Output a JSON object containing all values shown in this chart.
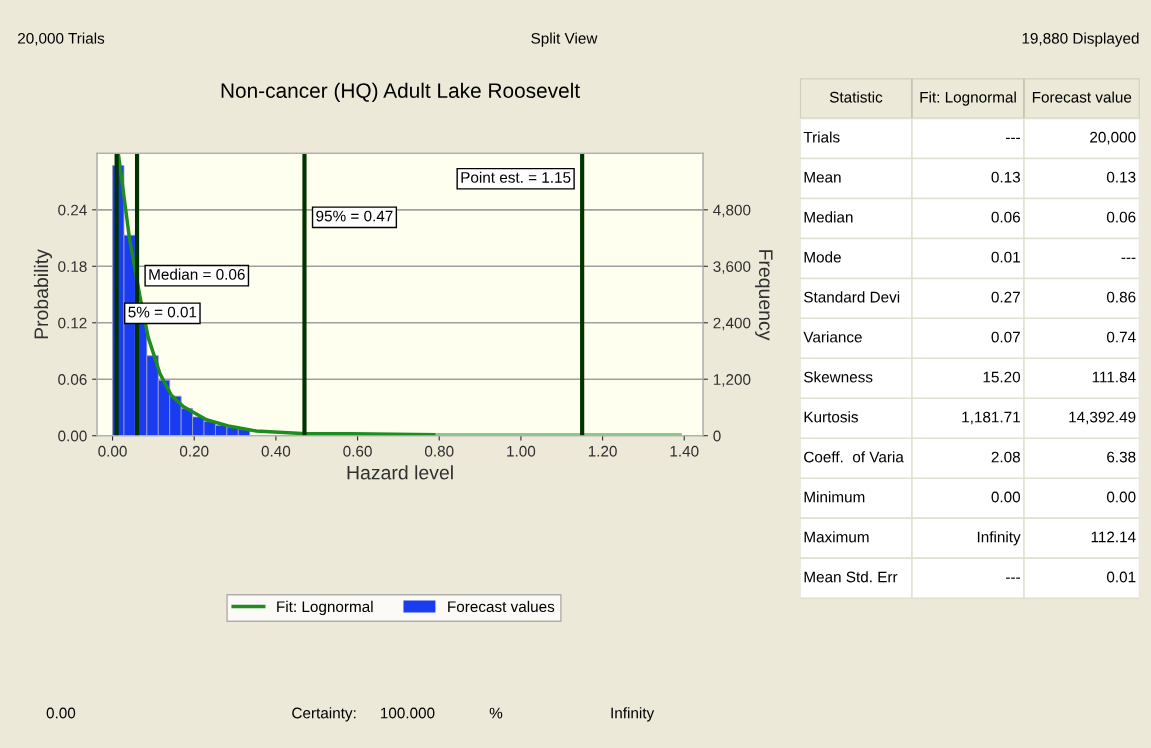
{
  "chart_data": [
    {
      "type": "histogram",
      "title": "Non-cancer (HQ) Adult Lake Roosevelt",
      "xlabel": "Hazard level",
      "ylabel": "Probability",
      "y2label": "Frequency",
      "xlim": [
        -0.038,
        1.446
      ],
      "xticks": [
        {
          "value": 0,
          "label": "0.00"
        },
        {
          "value": 0.2,
          "label": "0.20"
        },
        {
          "value": 0.4,
          "label": "0.40"
        },
        {
          "value": 0.6,
          "label": "0.60"
        },
        {
          "value": 0.8,
          "label": "0.80"
        },
        {
          "value": 1.0,
          "label": "1.00"
        },
        {
          "value": 1.2,
          "label": "1.20"
        },
        {
          "value": 1.4,
          "label": "1.40"
        }
      ],
      "ylim": [
        0,
        0.3
      ],
      "yticks": [
        {
          "value": 0,
          "label": "0.00"
        },
        {
          "value": 0.06,
          "label": "0.06"
        },
        {
          "value": 0.12,
          "label": "0.12"
        },
        {
          "value": 0.18,
          "label": "0.18"
        },
        {
          "value": 0.24,
          "label": "0.24"
        }
      ],
      "y2lim": [
        0,
        6000
      ],
      "y2ticks": [
        0,
        {
          "value": 1200,
          "label": "1,200"
        },
        {
          "value": 2400,
          "label": "2,400"
        },
        {
          "value": 3600,
          "label": "3,600"
        },
        {
          "value": 4800,
          "label": "4,800"
        }
      ],
      "grid": "y",
      "legend": "bottom",
      "series": [
        {
          "name": "Forecast values",
          "type": "histogram",
          "color": "#1a3cf0",
          "bins": [
            0,
            0.028,
            0.056,
            0.084,
            0.112,
            0.14,
            0.168,
            0.196,
            0.224,
            0.252,
            0.28,
            0.308,
            0.336,
            0.364,
            0.392,
            0.42,
            0.448,
            0.476,
            0.504,
            0.532,
            0.56,
            0.588,
            0.616,
            0.644,
            0.672,
            0.7,
            0.728,
            0.756,
            0.784,
            0.812
          ],
          "values": [
            0.287,
            0.213,
            0.12,
            0.085,
            0.059,
            0.042,
            0.029,
            0.02,
            0.015,
            0.011,
            0.009,
            0.007,
            null,
            null,
            null,
            null,
            null,
            null,
            null,
            null,
            0.001,
            0.001,
            0.001,
            0.001,
            0.001,
            0.001,
            0.001,
            0.001,
            0.001
          ]
        },
        {
          "name": "Fit: Lognormal",
          "type": "line",
          "color": "#1e8c1e",
          "x": [
            0.014,
            0.042,
            0.067,
            0.087,
            0.116,
            0.144,
            0.173,
            0.23,
            0.287,
            0.352,
            0.475,
            0.581,
            0.795
          ],
          "values": [
            0.3,
            0.208,
            0.148,
            0.105,
            0.066,
            0.043,
            0.031,
            0.017,
            0.01,
            0.005,
            0.002,
            0.002,
            0.001
          ]
        },
        {
          "type": "line",
          "color": "#8cc88c",
          "x": [
            0.795,
            1.39
          ],
          "values": [
            0.001,
            0.001
          ]
        }
      ],
      "ref_lines": [
        {
          "axis": "x",
          "value": 0.01,
          "label": "5% = 0.01",
          "color": "#003300"
        },
        {
          "axis": "x",
          "value": 0.06,
          "label": "Median = 0.06",
          "color": "#003300"
        },
        {
          "axis": "x",
          "value": 0.47,
          "label": "95% = 0.47",
          "color": "#003300"
        },
        {
          "axis": "x",
          "value": 1.15,
          "label": "Point est. = 1.15",
          "color": "#003300"
        }
      ],
      "annotations": [
        "20,000 Trials",
        "Split View",
        "19,880 Displayed",
        "0.00",
        "Certainty:",
        "100.000",
        "%",
        "Infinity"
      ]
    },
    {
      "type": "other",
      "annotations": [
        "Statistic",
        "Fit: Lognormal",
        "Forecast value",
        "Trials",
        "---",
        "20,000",
        "Mean",
        "0.13",
        "0.13",
        "Median",
        "0.06",
        "0.06",
        "Mode",
        "0.01",
        "---",
        "Standard Devi",
        "0.27",
        "0.86",
        "Variance",
        "0.07",
        "0.74",
        "Skewness",
        "15.20",
        "111.84",
        "Kurtosis",
        "1,181.71",
        "14,392.49",
        "Coeff.  of Varia",
        "2.08",
        "6.38",
        "Minimum",
        "0.00",
        "0.00",
        "Maximum",
        "Infinity",
        "112.14",
        "Mean Std. Err",
        "---",
        "0.01"
      ]
    }
  ]
}
